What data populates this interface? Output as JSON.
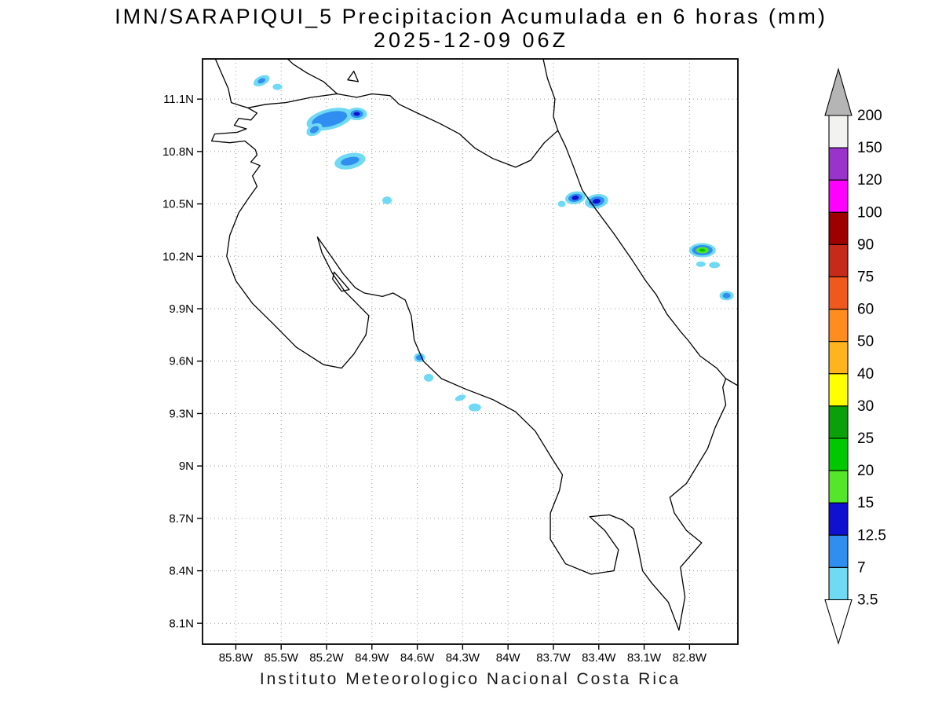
{
  "title": {
    "line1": "IMN/SARAPIQUI_5 Precipitacion Acumulada en 6 horas (mm)",
    "line2": "2025-12-09 06Z"
  },
  "footer": "Instituto Meteorologico Nacional Costa Rica",
  "style": {
    "grid_color": "#999999",
    "frame_color": "#000000",
    "text_color": "#000000",
    "background": "#ffffff"
  },
  "chart_data": {
    "type": "heatmap",
    "subtype": "filled-contour precipitation map over coastline basemap",
    "title": "IMN/SARAPIQUI_5 Precipitacion Acumulada en 6 horas (mm)",
    "valid_time": "2025-12-09 06Z",
    "units": "mm",
    "region": "Costa Rica",
    "grid": true,
    "geo": {
      "lon_left_w": 86.02,
      "lon_right_w": 82.48,
      "lat_top_n": 11.33,
      "lat_bottom_n": 7.98
    },
    "x_ticks": {
      "values": [
        85.8,
        85.5,
        85.2,
        84.9,
        84.6,
        84.3,
        84.0,
        83.7,
        83.4,
        83.1,
        82.8
      ],
      "labels": [
        "85.8W",
        "85.5W",
        "85.2W",
        "84.9W",
        "84.6W",
        "84.3W",
        "84W",
        "83.7W",
        "83.4W",
        "83.1W",
        "82.8W"
      ]
    },
    "y_ticks": {
      "values": [
        11.1,
        10.8,
        10.5,
        10.2,
        9.9,
        9.6,
        9.3,
        9.0,
        8.7,
        8.4,
        8.1
      ],
      "labels": [
        "11.1N",
        "10.8N",
        "10.5N",
        "10.2N",
        "9.9N",
        "9.6N",
        "9.3N",
        "9N",
        "8.7N",
        "8.4N",
        "8.1N"
      ]
    },
    "colorbar": {
      "position": "right",
      "boundary_labels_top_to_bottom": [
        "200",
        "150",
        "120",
        "100",
        "90",
        "75",
        "60",
        "50",
        "40",
        "30",
        "25",
        "20",
        "15",
        "12.5",
        "7",
        "3.5"
      ],
      "segment_colors_top_to_bottom": [
        "#f2f2f0",
        "#9933cc",
        "#ff00ff",
        "#9e0000",
        "#c52a1a",
        "#f0591e",
        "#ff8c1e",
        "#ffb41e",
        "#ffff00",
        "#0aa00a",
        "#00c800",
        "#55e629",
        "#1010d0",
        "#2f8ef0",
        "#70d9f3"
      ],
      "above_max_color": "#b5b5b5",
      "below_min_color": "#ffffff",
      "level_colors": {
        "3.5": "#70d9f3",
        "7": "#2f8ef0",
        "12.5": "#1010d0",
        "15": "#55e629",
        "20": "#00c800",
        "25": "#0aa00a",
        "30": "#ffff00",
        "40": "#ffb41e",
        "50": "#ff8c1e",
        "60": "#f0591e",
        "75": "#c52a1a",
        "90": "#9e0000",
        "100": "#ff00ff",
        "120": "#9933cc",
        "150": "#f2f2f0",
        "200": "#b5b5b5"
      }
    },
    "precip_cells": [
      {
        "lon_w": 85.63,
        "lat_n": 11.205,
        "rot": -25,
        "peak_mm": 7,
        "layers": [
          [
            3.5,
            11,
            6
          ],
          [
            7,
            5,
            3
          ]
        ]
      },
      {
        "lon_w": 85.525,
        "lat_n": 11.17,
        "rot": 0,
        "peak_mm": 3.5,
        "layers": [
          [
            3.5,
            6,
            4
          ]
        ]
      },
      {
        "lon_w": 85.18,
        "lat_n": 10.985,
        "rot": -14,
        "peak_mm": 7,
        "layers": [
          [
            3.5,
            30,
            13
          ],
          [
            7,
            23,
            9
          ]
        ]
      },
      {
        "lon_w": 85.28,
        "lat_n": 10.925,
        "rot": -30,
        "peak_mm": 7,
        "layers": [
          [
            3.5,
            11,
            7
          ],
          [
            7,
            6,
            4
          ]
        ]
      },
      {
        "lon_w": 85.0,
        "lat_n": 11.015,
        "rot": 0,
        "peak_mm": 12.5,
        "layers": [
          [
            3.5,
            13,
            8
          ],
          [
            7,
            8,
            5
          ],
          [
            12.5,
            4,
            2.5
          ]
        ]
      },
      {
        "lon_w": 85.045,
        "lat_n": 10.745,
        "rot": -12,
        "peak_mm": 7,
        "layers": [
          [
            3.5,
            20,
            10
          ],
          [
            7,
            12,
            5
          ]
        ]
      },
      {
        "lon_w": 84.8,
        "lat_n": 10.52,
        "rot": 0,
        "peak_mm": 3.5,
        "layers": [
          [
            3.5,
            6,
            5
          ]
        ]
      },
      {
        "lon_w": 83.555,
        "lat_n": 10.535,
        "rot": -10,
        "peak_mm": 12.5,
        "layers": [
          [
            3.5,
            13,
            8
          ],
          [
            7,
            9,
            5
          ],
          [
            12.5,
            4.5,
            2.8
          ]
        ]
      },
      {
        "lon_w": 83.415,
        "lat_n": 10.515,
        "rot": -10,
        "peak_mm": 12.5,
        "layers": [
          [
            3.5,
            15,
            9
          ],
          [
            7,
            10,
            6
          ],
          [
            12.5,
            5,
            3
          ]
        ]
      },
      {
        "lon_w": 83.645,
        "lat_n": 10.5,
        "rot": 0,
        "peak_mm": 3.5,
        "layers": [
          [
            3.5,
            5,
            4
          ]
        ]
      },
      {
        "lon_w": 82.715,
        "lat_n": 10.235,
        "rot": 0,
        "peak_mm": 20,
        "layers": [
          [
            3.5,
            17,
            9
          ],
          [
            7,
            13,
            6.5
          ],
          [
            15,
            8,
            4
          ],
          [
            20,
            4,
            2
          ]
        ]
      },
      {
        "lon_w": 82.725,
        "lat_n": 10.155,
        "rot": 0,
        "peak_mm": 3.5,
        "layers": [
          [
            3.5,
            6,
            3.5
          ]
        ]
      },
      {
        "lon_w": 82.635,
        "lat_n": 10.15,
        "rot": 0,
        "peak_mm": 3.5,
        "layers": [
          [
            3.5,
            7,
            4
          ]
        ]
      },
      {
        "lon_w": 82.555,
        "lat_n": 9.975,
        "rot": 0,
        "peak_mm": 7,
        "layers": [
          [
            3.5,
            9,
            6
          ],
          [
            7,
            5,
            3.5
          ]
        ]
      },
      {
        "lon_w": 84.585,
        "lat_n": 9.62,
        "rot": 0,
        "peak_mm": 7,
        "layers": [
          [
            3.5,
            7,
            6
          ],
          [
            7,
            4.5,
            3.5
          ]
        ]
      },
      {
        "lon_w": 84.525,
        "lat_n": 9.505,
        "rot": 0,
        "peak_mm": 3.5,
        "layers": [
          [
            3.5,
            6,
            5
          ]
        ]
      },
      {
        "lon_w": 84.315,
        "lat_n": 9.39,
        "rot": -20,
        "peak_mm": 3.5,
        "layers": [
          [
            3.5,
            7,
            3.5
          ]
        ]
      },
      {
        "lon_w": 84.22,
        "lat_n": 9.335,
        "rot": 0,
        "peak_mm": 3.5,
        "layers": [
          [
            3.5,
            8,
            5
          ]
        ]
      }
    ],
    "basemap": {
      "stroke": "#000000",
      "segments": [
        {
          "name": "costa-rica-outline",
          "closed": true,
          "pts": [
            [
              85.72,
              11.05
            ],
            [
              85.66,
              11.02
            ],
            [
              85.7,
              10.98
            ],
            [
              85.78,
              10.99
            ],
            [
              85.81,
              10.95
            ],
            [
              85.73,
              10.93
            ],
            [
              85.79,
              10.91
            ],
            [
              85.94,
              10.9
            ],
            [
              85.96,
              10.86
            ],
            [
              85.84,
              10.85
            ],
            [
              85.74,
              10.86
            ],
            [
              85.67,
              10.81
            ],
            [
              85.66,
              10.78
            ],
            [
              85.7,
              10.74
            ],
            [
              85.64,
              10.72
            ],
            [
              85.69,
              10.66
            ],
            [
              85.66,
              10.6
            ],
            [
              85.71,
              10.54
            ],
            [
              85.78,
              10.45
            ],
            [
              85.84,
              10.32
            ],
            [
              85.86,
              10.2
            ],
            [
              85.8,
              10.06
            ],
            [
              85.69,
              9.93
            ],
            [
              85.56,
              9.82
            ],
            [
              85.4,
              9.68
            ],
            [
              85.22,
              9.58
            ],
            [
              85.1,
              9.56
            ],
            [
              85.02,
              9.64
            ],
            [
              84.94,
              9.75
            ],
            [
              84.92,
              9.86
            ],
            [
              85.0,
              9.93
            ],
            [
              85.08,
              10.0
            ],
            [
              85.16,
              10.1
            ],
            [
              85.23,
              10.22
            ],
            [
              85.26,
              10.31
            ],
            [
              85.17,
              10.2
            ],
            [
              85.09,
              10.1
            ],
            [
              85.01,
              10.02
            ],
            [
              84.95,
              9.99
            ],
            [
              84.83,
              9.97
            ],
            [
              84.76,
              9.99
            ],
            [
              84.68,
              9.95
            ],
            [
              84.64,
              9.86
            ],
            [
              84.62,
              9.72
            ],
            [
              84.56,
              9.6
            ],
            [
              84.44,
              9.5
            ],
            [
              84.28,
              9.44
            ],
            [
              84.1,
              9.38
            ],
            [
              83.95,
              9.31
            ],
            [
              83.82,
              9.2
            ],
            [
              83.7,
              9.03
            ],
            [
              83.64,
              8.95
            ],
            [
              83.66,
              8.86
            ],
            [
              83.72,
              8.73
            ],
            [
              83.72,
              8.58
            ],
            [
              83.62,
              8.44
            ],
            [
              83.45,
              8.38
            ],
            [
              83.3,
              8.4
            ],
            [
              83.27,
              8.52
            ],
            [
              83.36,
              8.63
            ],
            [
              83.46,
              8.71
            ],
            [
              83.33,
              8.72
            ],
            [
              83.24,
              8.69
            ],
            [
              83.17,
              8.64
            ],
            [
              83.14,
              8.53
            ],
            [
              83.11,
              8.4
            ],
            [
              83.05,
              8.33
            ],
            [
              82.94,
              8.22
            ],
            [
              82.87,
              8.06
            ],
            [
              82.83,
              8.25
            ],
            [
              82.86,
              8.42
            ],
            [
              82.78,
              8.5
            ],
            [
              82.72,
              8.56
            ],
            [
              82.82,
              8.63
            ],
            [
              82.9,
              8.73
            ],
            [
              82.93,
              8.82
            ],
            [
              82.82,
              8.9
            ],
            [
              82.75,
              9.0
            ],
            [
              82.68,
              9.1
            ],
            [
              82.63,
              9.22
            ],
            [
              82.56,
              9.35
            ],
            [
              82.58,
              9.45
            ],
            [
              82.56,
              9.5
            ],
            [
              82.62,
              9.56
            ],
            [
              82.73,
              9.63
            ],
            [
              82.81,
              9.72
            ],
            [
              82.86,
              9.77
            ],
            [
              82.95,
              9.87
            ],
            [
              83.02,
              9.98
            ],
            [
              83.09,
              10.06
            ],
            [
              83.18,
              10.18
            ],
            [
              83.3,
              10.33
            ],
            [
              83.42,
              10.47
            ],
            [
              83.51,
              10.58
            ],
            [
              83.57,
              10.72
            ],
            [
              83.62,
              10.83
            ],
            [
              83.67,
              10.92
            ],
            [
              83.76,
              10.85
            ],
            [
              83.85,
              10.75
            ],
            [
              83.95,
              10.71
            ],
            [
              84.1,
              10.76
            ],
            [
              84.22,
              10.82
            ],
            [
              84.32,
              10.9
            ],
            [
              84.45,
              10.96
            ],
            [
              84.6,
              11.02
            ],
            [
              84.72,
              11.07
            ],
            [
              84.78,
              11.12
            ],
            [
              84.9,
              11.13
            ],
            [
              85.0,
              11.11
            ],
            [
              85.13,
              11.13
            ],
            [
              85.3,
              11.11
            ],
            [
              85.47,
              11.08
            ],
            [
              85.6,
              11.07
            ]
          ]
        },
        {
          "name": "nicaragua-pacific-coast",
          "closed": false,
          "pts": [
            [
              85.94,
              11.34
            ],
            [
              85.9,
              11.26
            ],
            [
              85.85,
              11.16
            ],
            [
              85.83,
              11.08
            ],
            [
              85.76,
              11.06
            ],
            [
              85.72,
              11.05
            ]
          ]
        },
        {
          "name": "lake-nicaragua-shore",
          "closed": false,
          "pts": [
            [
              85.13,
              11.13
            ],
            [
              85.22,
              11.2
            ],
            [
              85.33,
              11.25
            ],
            [
              85.42,
              11.3
            ],
            [
              85.47,
              11.34
            ]
          ]
        },
        {
          "name": "nicaragua-caribbean-coast",
          "closed": false,
          "pts": [
            [
              83.67,
              10.92
            ],
            [
              83.7,
              11.0
            ],
            [
              83.69,
              11.1
            ],
            [
              83.74,
              11.22
            ],
            [
              83.77,
              11.34
            ]
          ]
        },
        {
          "name": "panama-caribbean-coast",
          "closed": false,
          "pts": [
            [
              82.56,
              9.5
            ],
            [
              82.48,
              9.46
            ],
            [
              82.44,
              9.44
            ]
          ]
        },
        {
          "name": "solentiname-island",
          "closed": true,
          "pts": [
            [
              85.06,
              11.21
            ],
            [
              84.99,
              11.2
            ],
            [
              85.02,
              11.26
            ]
          ]
        },
        {
          "name": "isla-chira",
          "closed": true,
          "pts": [
            [
              85.15,
              10.11
            ],
            [
              85.09,
              10.05
            ],
            [
              85.05,
              10.01
            ],
            [
              85.1,
              10.0
            ],
            [
              85.16,
              10.07
            ]
          ]
        }
      ]
    }
  }
}
